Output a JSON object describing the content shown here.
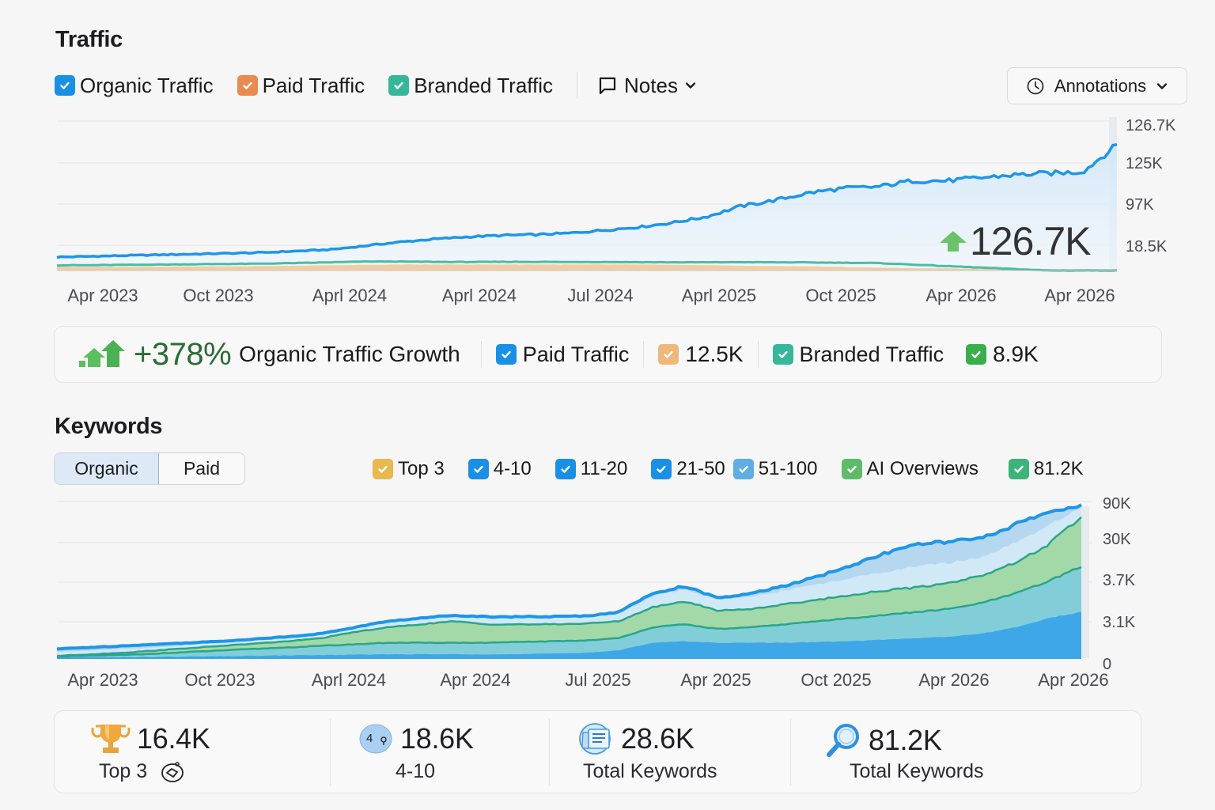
{
  "traffic": {
    "title": "Traffic",
    "legend": [
      {
        "label": "Organic Traffic",
        "color": "#1a8fe6",
        "checked": true
      },
      {
        "label": "Paid Traffic",
        "color": "#ea8a4f",
        "checked": true
      },
      {
        "label": "Branded Traffic",
        "color": "#36b79a",
        "checked": true
      }
    ],
    "notes_label": "Notes",
    "annotations_label": "Annotations",
    "current_value": "126.7K",
    "summary": {
      "growth_value": "+378%",
      "growth_label": "Organic Traffic Growth",
      "paid_label": "Paid Traffic",
      "paid_value": "12.5K",
      "branded_label": "Branded Traffic",
      "branded_value": "8.9K"
    }
  },
  "keywords": {
    "title": "Keywords",
    "tabs": [
      {
        "label": "Organic",
        "active": true
      },
      {
        "label": "Paid",
        "active": false
      }
    ],
    "legend": [
      {
        "label": "Top 3",
        "color": "#e9b84f",
        "checked": true
      },
      {
        "label": "4-10",
        "color": "#1a8fe6",
        "checked": true
      },
      {
        "label": "11-20",
        "color": "#1a8fe6",
        "checked": true
      },
      {
        "label": "21-50",
        "color": "#1a8fe6",
        "checked": true
      },
      {
        "label": "51-100",
        "color": "#5eaee3",
        "checked": true
      },
      {
        "label": "AI Overviews",
        "color": "#5dbb6a",
        "checked": true
      },
      {
        "label": "81.2K",
        "color": "#3cb37a",
        "checked": true
      }
    ],
    "stats": [
      {
        "value": "16.4K",
        "label": "Top 3",
        "icon": "trophy-icon"
      },
      {
        "value": "18.6K",
        "label": "4-10",
        "icon": "position-badge-icon",
        "badge_text": "4"
      },
      {
        "value": "28.6K",
        "label": "Total Keywords",
        "icon": "document-list-icon"
      },
      {
        "value": "81.2K",
        "label": "Total Keywords",
        "icon": "magnifier-icon"
      }
    ]
  },
  "chart_data": [
    {
      "type": "line",
      "title": "Traffic",
      "x_tick_labels": [
        "Apr 2023",
        "Oct 2023",
        "Aprl 2024",
        "Aprl 2024",
        "Jul 2024",
        "Aprl 2025",
        "Oct 2025",
        "Apr 2026",
        "Apr 2026"
      ],
      "y_tick_labels": [
        "126.7K",
        "125K",
        "97K",
        "18.5K"
      ],
      "y_axis_position": "right",
      "grid": true,
      "annotation": "126.7K",
      "ylim": [
        0,
        1
      ],
      "series": [
        {
          "name": "Organic Traffic",
          "color": "#1e96e8",
          "values": [
            0.09,
            0.095,
            0.1,
            0.105,
            0.11,
            0.115,
            0.12,
            0.13,
            0.14,
            0.165,
            0.19,
            0.21,
            0.225,
            0.235,
            0.24,
            0.25,
            0.27,
            0.29,
            0.32,
            0.36,
            0.43,
            0.47,
            0.52,
            0.55,
            0.56,
            0.6,
            0.6,
            0.62,
            0.64,
            0.65,
            0.66,
            0.84
          ]
        },
        {
          "name": "Branded Traffic",
          "color": "#36b79a",
          "values": [
            0.035,
            0.036,
            0.038,
            0.04,
            0.042,
            0.044,
            0.046,
            0.05,
            0.055,
            0.06,
            0.06,
            0.058,
            0.057,
            0.058,
            0.058,
            0.057,
            0.057,
            0.056,
            0.055,
            0.055,
            0.056,
            0.055,
            0.054,
            0.052,
            0.05,
            0.04,
            0.03,
            0.02,
            0.01,
            0.0,
            0.0,
            0.0
          ]
        },
        {
          "name": "Paid Traffic",
          "color": "#efc48f",
          "values": [
            0.015,
            0.015,
            0.015,
            0.016,
            0.017,
            0.018,
            0.02,
            0.022,
            0.025,
            0.028,
            0.03,
            0.03,
            0.03,
            0.03,
            0.03,
            0.03,
            0.03,
            0.03,
            0.028,
            0.026,
            0.022,
            0.02,
            0.018,
            0.014,
            0.01,
            0.006,
            0.004,
            0.002,
            0.0,
            0.0,
            0.0,
            0.0
          ]
        }
      ]
    },
    {
      "type": "area",
      "title": "Keywords",
      "x_tick_labels": [
        "Apr 2023",
        "Oct 2023",
        "Aprl 2024",
        "Apr 2024",
        "Jul 2025",
        "Apr 2025",
        "Oct 2025",
        "Apr 2026",
        "Apr 2026"
      ],
      "y_tick_labels": [
        "90K",
        "30K",
        "3.7K",
        "3.1K",
        "0"
      ],
      "y_axis_position": "right",
      "grid": true,
      "ylim": [
        0,
        1
      ],
      "series": [
        {
          "name": "Top 3",
          "color": "#3aa4e8",
          "values": [
            0.0,
            0.0,
            0.005,
            0.008,
            0.01,
            0.012,
            0.015,
            0.018,
            0.02,
            0.022,
            0.025,
            0.025,
            0.025,
            0.025,
            0.025,
            0.03,
            0.035,
            0.05,
            0.1,
            0.11,
            0.1,
            0.1,
            0.1,
            0.105,
            0.11,
            0.12,
            0.13,
            0.14,
            0.16,
            0.2,
            0.26,
            0.3
          ]
        },
        {
          "name": "4-10",
          "color": "#7dcbe0",
          "values": [
            0.01,
            0.015,
            0.02,
            0.03,
            0.04,
            0.05,
            0.06,
            0.07,
            0.08,
            0.09,
            0.1,
            0.1,
            0.1,
            0.1,
            0.105,
            0.11,
            0.115,
            0.13,
            0.2,
            0.22,
            0.19,
            0.2,
            0.22,
            0.24,
            0.26,
            0.28,
            0.3,
            0.32,
            0.36,
            0.42,
            0.5,
            0.6
          ]
        },
        {
          "name": "AI Overviews",
          "color": "#9bd69a",
          "values": [
            0.015,
            0.025,
            0.035,
            0.05,
            0.065,
            0.08,
            0.095,
            0.11,
            0.13,
            0.17,
            0.2,
            0.22,
            0.24,
            0.22,
            0.22,
            0.22,
            0.225,
            0.24,
            0.33,
            0.37,
            0.31,
            0.32,
            0.35,
            0.38,
            0.41,
            0.44,
            0.46,
            0.49,
            0.54,
            0.62,
            0.74,
            0.92
          ]
        },
        {
          "name": "11-20",
          "color": "#d6ebf8",
          "values": [
            0.04,
            0.05,
            0.06,
            0.07,
            0.085,
            0.1,
            0.12,
            0.14,
            0.16,
            0.2,
            0.24,
            0.26,
            0.28,
            0.26,
            0.27,
            0.27,
            0.27,
            0.29,
            0.4,
            0.45,
            0.38,
            0.4,
            0.44,
            0.48,
            0.52,
            0.56,
            0.6,
            0.62,
            0.66,
            0.75,
            0.86,
            0.98
          ]
        },
        {
          "name": "51-100",
          "color": "#a9d1ee",
          "values": [
            0.06,
            0.07,
            0.08,
            0.09,
            0.1,
            0.11,
            0.125,
            0.14,
            0.16,
            0.2,
            0.24,
            0.26,
            0.28,
            0.27,
            0.27,
            0.27,
            0.275,
            0.3,
            0.42,
            0.47,
            0.39,
            0.42,
            0.47,
            0.53,
            0.6,
            0.68,
            0.74,
            0.76,
            0.78,
            0.87,
            0.95,
            1.0
          ]
        }
      ]
    }
  ]
}
